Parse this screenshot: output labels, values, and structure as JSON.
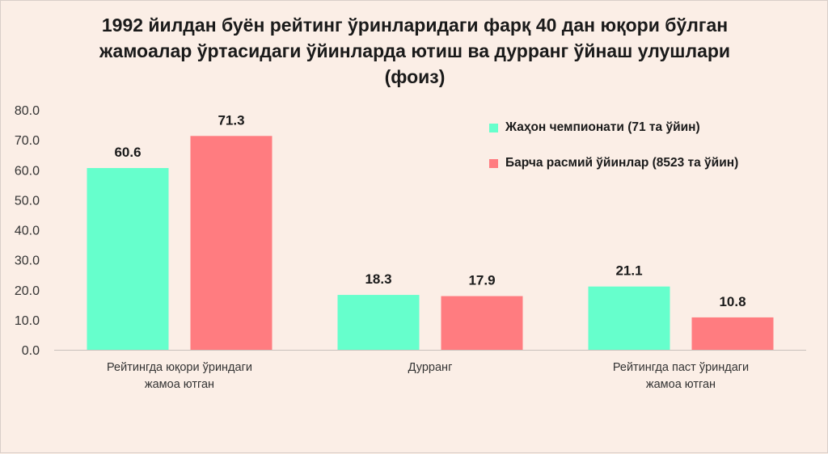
{
  "title_lines": [
    "1992 йилдан буён рейтинг ўринларидаги фарқ 40 дан юқори бўлган",
    "жамоалар ўртасидаги ўйинларда  ютиш ва дурранг ўйнаш улушлари",
    "(фоиз)"
  ],
  "chart_data": {
    "type": "bar",
    "title": "1992 йилдан буён рейтинг ўринларидаги фарқ 40 дан юқори бўлган жамоалар ўртасидаги ўйинларда  ютиш ва дурранг ўйнаш улушлари (фоиз)",
    "categories": [
      [
        "Рейтингда юқори ўриндаги",
        "жамоа ютган"
      ],
      [
        "Дурранг"
      ],
      [
        "Рейтингда паст ўриндаги",
        "жамоа ютган"
      ]
    ],
    "series": [
      {
        "name": "Жаҳон чемпионати (71 та ўйин)",
        "values": [
          60.6,
          18.3,
          21.1
        ],
        "color": "#66FFCC"
      },
      {
        "name": "Барча расмий ўйинлар (8523 та ўйин)",
        "values": [
          71.3,
          17.9,
          10.8
        ],
        "color": "#FF7C80"
      }
    ],
    "yticks": [
      "0.0",
      "10.0",
      "20.0",
      "30.0",
      "40.0",
      "50.0",
      "60.0",
      "70.0",
      "80.0"
    ],
    "ylim": [
      0,
      80
    ],
    "grid": false,
    "legend_position": "top-right"
  }
}
